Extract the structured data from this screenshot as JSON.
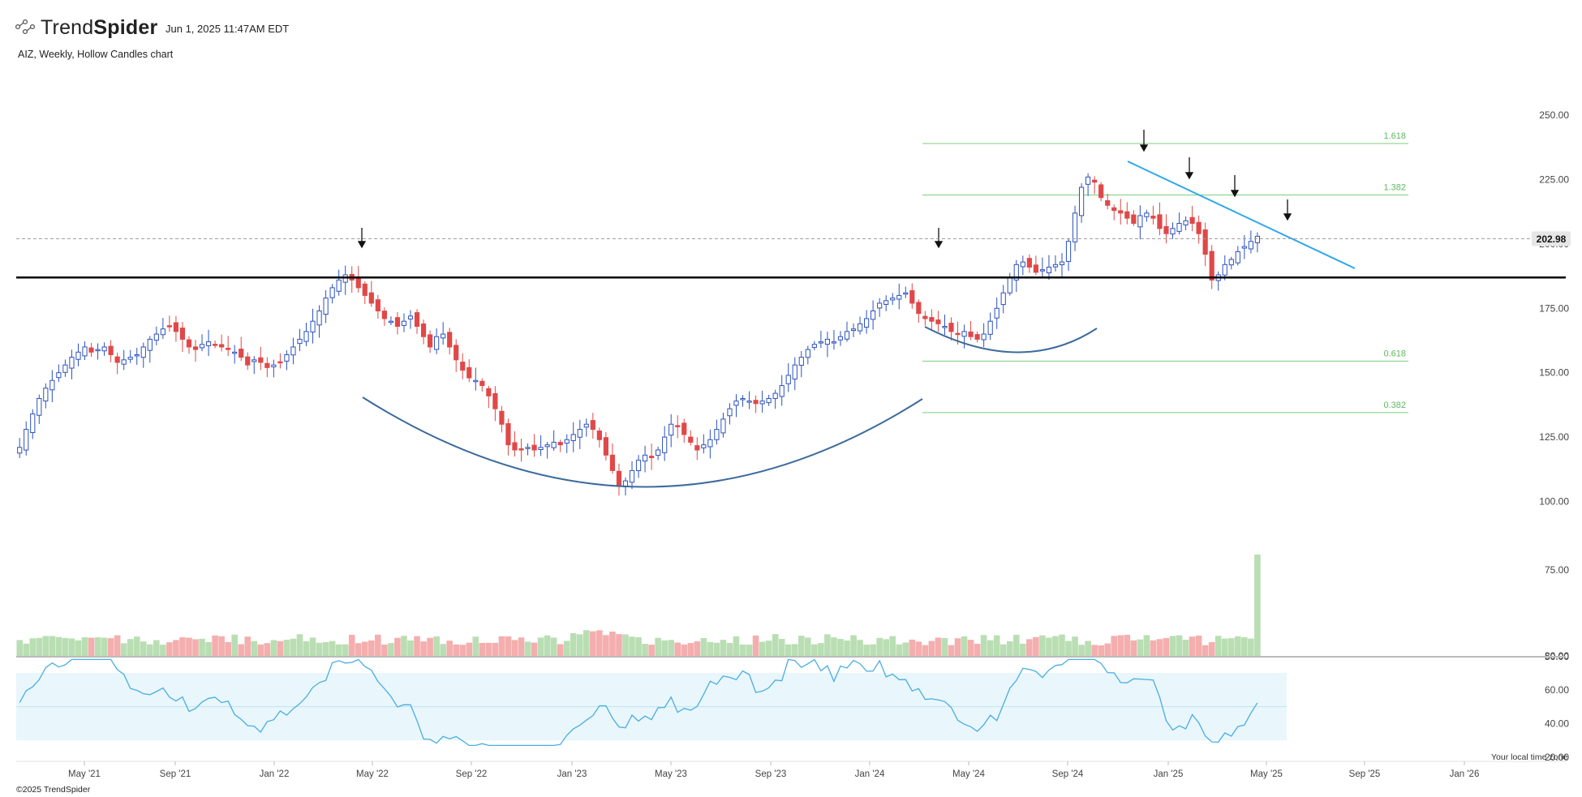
{
  "header": {
    "brand_light": "Trend",
    "brand_bold": "Spider",
    "timestamp": "Jun 1, 2025 11:47AM EDT",
    "subtitle": "AIZ, Weekly, Hollow Candles chart"
  },
  "footer": {
    "copyright": "©2025 TrendSpider",
    "timezone_note": "Your local time zone"
  },
  "colors": {
    "up": "#2c52c0",
    "down": "#e04848",
    "vol_up": "#b9deb3",
    "vol_down": "#f4aeae",
    "fib": "#7ccc7c",
    "trendline": "#2fa8e8",
    "arc": "#3c6a9c",
    "rsi_line": "#4aaee0",
    "rsi_band": "#e9f6fb"
  },
  "chart_data": {
    "type": "candlestick",
    "symbol": "AIZ",
    "interval": "Weekly",
    "style": "Hollow Candles",
    "price_axis": {
      "ticks": [
        100,
        125,
        150,
        175,
        200,
        225,
        250
      ],
      "labels": [
        "100.00",
        "125.00",
        "150.00",
        "175.00",
        "200.00",
        "225.00",
        "250.00"
      ]
    },
    "last_price": 202.98,
    "last_price_label": "202.98",
    "time_axis": [
      "May '21",
      "Sep '21",
      "Jan '22",
      "May '22",
      "Sep '22",
      "Jan '23",
      "May '23",
      "Sep '23",
      "Jan '24",
      "May '24",
      "Sep '24",
      "Jan '25",
      "May '25",
      "Sep '25",
      "Jan '26"
    ],
    "closes": [
      121,
      128,
      134,
      140,
      144,
      147,
      150,
      153,
      156,
      158,
      160,
      158,
      159,
      160,
      157,
      154,
      155,
      156,
      157,
      160,
      163,
      165,
      167,
      168,
      166,
      163,
      160,
      159,
      161,
      162,
      161,
      160,
      159,
      158,
      156,
      153,
      155,
      154,
      152,
      153,
      154,
      157,
      160,
      163,
      166,
      170,
      174,
      179,
      183,
      186,
      188,
      186,
      183,
      180,
      177,
      174,
      171,
      170,
      168,
      170,
      172,
      168,
      164,
      160,
      164,
      165,
      160,
      155,
      151,
      148,
      147,
      145,
      141,
      136,
      130,
      122,
      120,
      120,
      121,
      120,
      121,
      122,
      123,
      122,
      124,
      126,
      128,
      130,
      128,
      124,
      118,
      112,
      106,
      108,
      112,
      116,
      118,
      117,
      120,
      125,
      130,
      129,
      126,
      123,
      120,
      122,
      124,
      128,
      132,
      136,
      139,
      140,
      139,
      138,
      139,
      140,
      142,
      145,
      149,
      153,
      156,
      159,
      161,
      162,
      163,
      162,
      164,
      166,
      167,
      169,
      171,
      174,
      177,
      178,
      179,
      180,
      181,
      177,
      173,
      171,
      170,
      169,
      168,
      166,
      165,
      166,
      164,
      163,
      165,
      170,
      175,
      181,
      187,
      192,
      193,
      191,
      189,
      190,
      191,
      192,
      193,
      201,
      212,
      222,
      226,
      224,
      218,
      215,
      213,
      212,
      210,
      208,
      211,
      212,
      210,
      206,
      204,
      206,
      208,
      209,
      208,
      204,
      196,
      186,
      188,
      192,
      194,
      197,
      199,
      201,
      203
    ],
    "rsi": {
      "ticks": [
        20,
        40,
        60,
        80
      ],
      "labels": [
        "20.00",
        "40.00",
        "60.00",
        "80.00"
      ],
      "band": [
        30,
        70
      ],
      "midline": 50
    },
    "volume_axis": {
      "ticks": [
        50,
        75
      ],
      "labels": [
        "50.00",
        "75.00"
      ]
    },
    "fibonacci_levels": [
      {
        "label": "1.618",
        "price": 239
      },
      {
        "label": "1.382",
        "price": 219
      },
      {
        "label": "0.618",
        "price": 154.5
      },
      {
        "label": "0.382",
        "price": 134.5
      }
    ],
    "support_line_price": 187,
    "grid": false
  }
}
